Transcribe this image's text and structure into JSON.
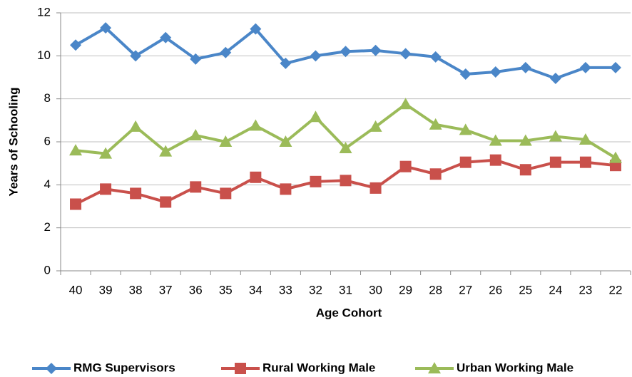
{
  "chart_data": {
    "type": "line",
    "x_label": "Age Cohort",
    "y_label": "Years of Schooling",
    "categories": [
      "40",
      "39",
      "38",
      "37",
      "36",
      "35",
      "34",
      "33",
      "32",
      "31",
      "30",
      "29",
      "28",
      "27",
      "26",
      "25",
      "24",
      "23",
      "22"
    ],
    "series": [
      {
        "name": "RMG Supervisors",
        "color": "#4a86c8",
        "marker": "diamond",
        "values": [
          10.5,
          11.3,
          10.0,
          10.85,
          9.85,
          10.15,
          11.25,
          9.65,
          10.0,
          10.2,
          10.25,
          10.1,
          9.95,
          9.15,
          9.25,
          9.45,
          8.95,
          9.45,
          9.45
        ]
      },
      {
        "name": "Rural Working Male",
        "color": "#c9504b",
        "marker": "square",
        "values": [
          3.1,
          3.8,
          3.6,
          3.2,
          3.9,
          3.6,
          4.35,
          3.8,
          4.15,
          4.2,
          3.85,
          4.85,
          4.5,
          5.05,
          5.15,
          4.7,
          5.05,
          5.05,
          4.9
        ]
      },
      {
        "name": "Urban Working Male",
        "color": "#9bbb59",
        "marker": "triangle",
        "values": [
          5.6,
          5.45,
          6.7,
          5.55,
          6.3,
          6.0,
          6.75,
          6.0,
          7.15,
          5.7,
          6.7,
          7.75,
          6.8,
          6.55,
          6.05,
          6.05,
          6.25,
          6.1,
          5.25
        ]
      }
    ],
    "ylim": [
      0,
      12
    ],
    "yticks": [
      0,
      2,
      4,
      6,
      8,
      10,
      12
    ],
    "grid": true,
    "legend": "bottom"
  }
}
